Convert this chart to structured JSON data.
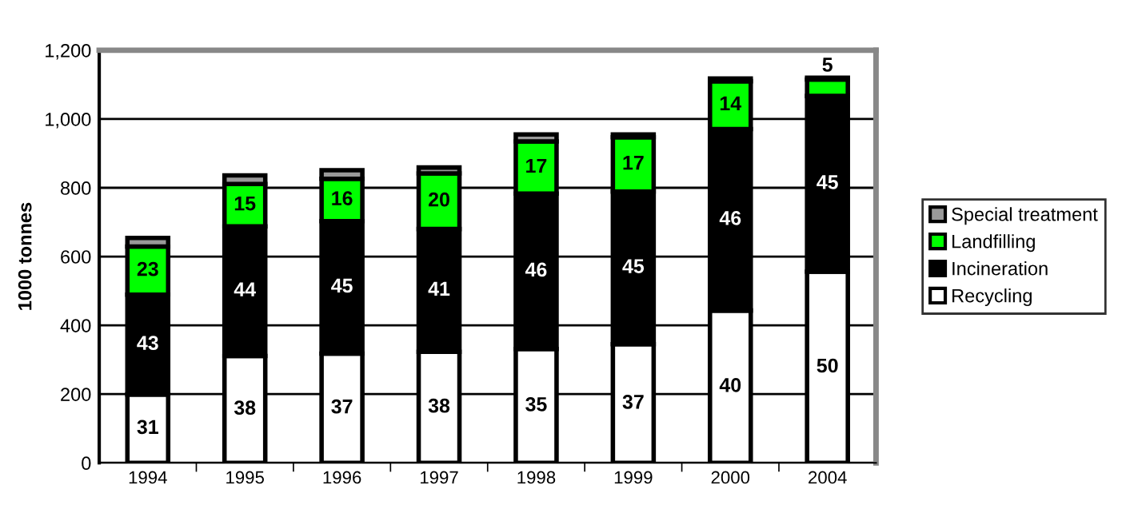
{
  "chart_data": {
    "type": "bar",
    "stacked": true,
    "ylabel": "1000 tonnes",
    "categories": [
      "1994",
      "1995",
      "1996",
      "1997",
      "1998",
      "1999",
      "2000",
      "2004"
    ],
    "series": [
      {
        "name": "Recycling",
        "color": "#ffffff",
        "values": [
          199,
          311,
          318,
          323,
          331,
          345,
          443,
          556
        ]
      },
      {
        "name": "Incineration",
        "color": "#000000",
        "values": [
          290,
          377,
          385,
          357,
          452,
          444,
          528,
          511
        ]
      },
      {
        "name": "Landfilling",
        "color": "#00ff00",
        "values": [
          140,
          123,
          123,
          162,
          152,
          158,
          139,
          48
        ]
      },
      {
        "name": "Special treatment",
        "color": "#999999",
        "values": [
          25,
          25,
          25,
          17,
          20,
          8,
          8,
          5
        ]
      }
    ],
    "annotations": [
      "31",
      "38",
      "37",
      "38",
      "35",
      "37",
      "40",
      "50",
      "43",
      "44",
      "45",
      "41",
      "46",
      "45",
      "46",
      "45",
      "23",
      "15",
      "16",
      "20",
      "17",
      "17",
      "14",
      "5"
    ],
    "ylim": [
      0,
      1200
    ],
    "yticks": [
      {
        "value": 0,
        "label": "0"
      },
      {
        "value": 200,
        "label": "200"
      },
      {
        "value": 400,
        "label": "400"
      },
      {
        "value": 600,
        "label": "600"
      },
      {
        "value": 800,
        "label": "800"
      },
      {
        "value": 1000,
        "label": "1,000"
      },
      {
        "value": 1200,
        "label": "1,200"
      }
    ],
    "grid": "y",
    "legend": "right"
  }
}
